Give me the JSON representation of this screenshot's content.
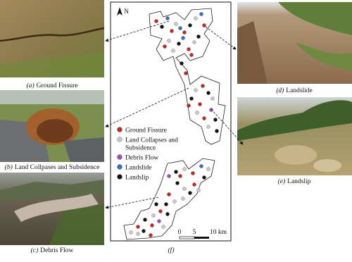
{
  "panels": [
    {
      "letter": "(a)",
      "caption": "Ground Fissure"
    },
    {
      "letter": "(b)",
      "caption": "Land Collpases and Subsidence"
    },
    {
      "letter": "(c)",
      "caption": "Debris Flow"
    },
    {
      "letter": "(d)",
      "caption": "Landslide"
    },
    {
      "letter": "(e)",
      "caption": "Landslip"
    }
  ],
  "map": {
    "label": "(f)",
    "north": "N",
    "legend": [
      {
        "name": "Ground Fissure",
        "color": "#c0282a"
      },
      {
        "name": "Land Collapses and",
        "name2": "Subsidence",
        "color": "#c8c8c8"
      },
      {
        "name": "Debris Flow",
        "color": "#a050b0"
      },
      {
        "name": "Landslide",
        "color": "#3a6fc0"
      },
      {
        "name": "Landslip",
        "color": "#111111"
      }
    ],
    "scale": [
      "0",
      "5",
      "10 km"
    ]
  }
}
